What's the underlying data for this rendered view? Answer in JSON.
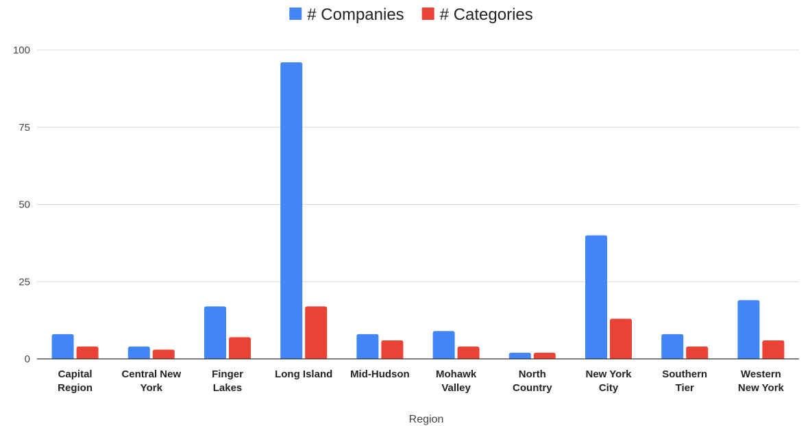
{
  "chart_data": {
    "type": "bar",
    "categories": [
      [
        "Capital",
        "Region"
      ],
      [
        "Central New",
        "York"
      ],
      [
        "Finger",
        "Lakes"
      ],
      [
        "Long Island"
      ],
      [
        "Mid-Hudson"
      ],
      [
        "Mohawk",
        "Valley"
      ],
      [
        "North",
        "Country"
      ],
      [
        "New York",
        "City"
      ],
      [
        "Southern",
        "Tier"
      ],
      [
        "Western",
        "New York"
      ]
    ],
    "series": [
      {
        "name": "# Companies",
        "color": "#4285f4",
        "values": [
          8,
          4,
          17,
          96,
          8,
          9,
          2,
          40,
          8,
          19
        ]
      },
      {
        "name": "# Categories",
        "color": "#ea4335",
        "values": [
          4,
          3,
          7,
          17,
          6,
          4,
          2,
          13,
          4,
          6
        ]
      }
    ],
    "title": "",
    "xlabel": "Region",
    "ylabel": "",
    "ylim": [
      0,
      100
    ],
    "yticks": [
      0,
      25,
      50,
      75,
      100
    ],
    "grid": true,
    "legend_position": "top-center"
  }
}
